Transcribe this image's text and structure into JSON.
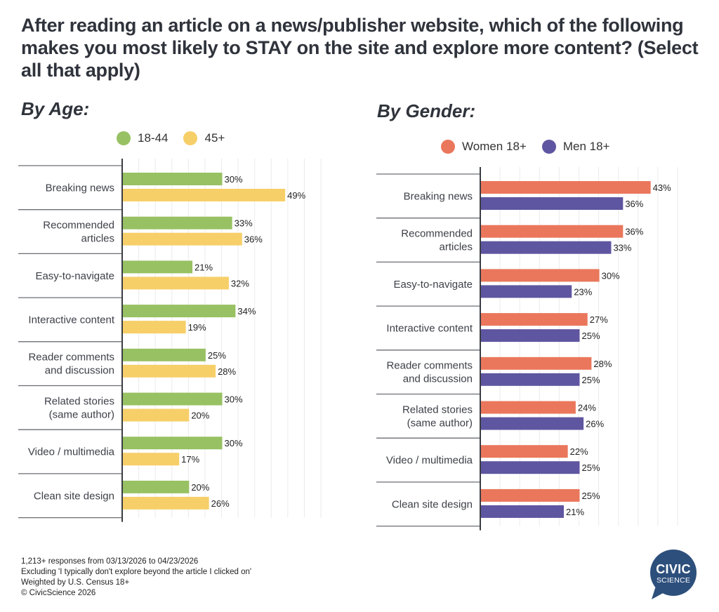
{
  "title": "After reading an article on a news/publisher website, which of the following makes you most likely to STAY on the site and explore more content? (Select all that apply)",
  "footer": {
    "lines": [
      "1,213+ responses from 03/13/2026 to 04/23/2026",
      "Excluding 'I typically don't explore beyond the article I clicked on'",
      "Weighted by U.S. Census 18+",
      "© CivicScience 2026"
    ]
  },
  "logo": {
    "line1": "CIVIC",
    "line2": "SCIENCE",
    "color": "#2d4f7c",
    "icon": "speech-bubble-logo"
  },
  "chart_data": [
    {
      "type": "bar",
      "orientation": "horizontal",
      "title": "By Age:",
      "xlabel": "",
      "ylabel": "",
      "xlim": [
        0,
        60
      ],
      "grid": true,
      "grid_step": 5,
      "legend_position": "top-center",
      "value_suffix": "%",
      "categories": [
        [
          "Breaking news"
        ],
        [
          "Recommended",
          "articles"
        ],
        [
          "Easy-to-navigate"
        ],
        [
          "Interactive content"
        ],
        [
          "Reader comments",
          "and discussion"
        ],
        [
          "Related stories",
          "(same author)"
        ],
        [
          "Video / multimedia"
        ],
        [
          "Clean site design"
        ]
      ],
      "series": [
        {
          "name": "18-44",
          "color": "#98c163",
          "values": [
            30,
            33,
            21,
            34,
            25,
            30,
            30,
            20
          ]
        },
        {
          "name": "45+",
          "color": "#f7cf69",
          "values": [
            49,
            36,
            32,
            19,
            28,
            20,
            17,
            26
          ]
        }
      ]
    },
    {
      "type": "bar",
      "orientation": "horizontal",
      "title": "By Gender:",
      "xlabel": "",
      "ylabel": "",
      "xlim": [
        0,
        50
      ],
      "grid": true,
      "grid_step": 5,
      "legend_position": "top-center",
      "value_suffix": "%",
      "categories": [
        [
          "Breaking news"
        ],
        [
          "Recommended",
          "articles"
        ],
        [
          "Easy-to-navigate"
        ],
        [
          "Interactive content"
        ],
        [
          "Reader comments",
          "and discussion"
        ],
        [
          "Related stories",
          "(same author)"
        ],
        [
          "Video / multimedia"
        ],
        [
          "Clean site design"
        ]
      ],
      "series": [
        {
          "name": "Women 18+",
          "color": "#ea775c",
          "values": [
            43,
            36,
            30,
            27,
            28,
            24,
            22,
            25
          ]
        },
        {
          "name": "Men 18+",
          "color": "#5e56a0",
          "values": [
            36,
            33,
            23,
            25,
            25,
            26,
            25,
            21
          ]
        }
      ]
    }
  ]
}
